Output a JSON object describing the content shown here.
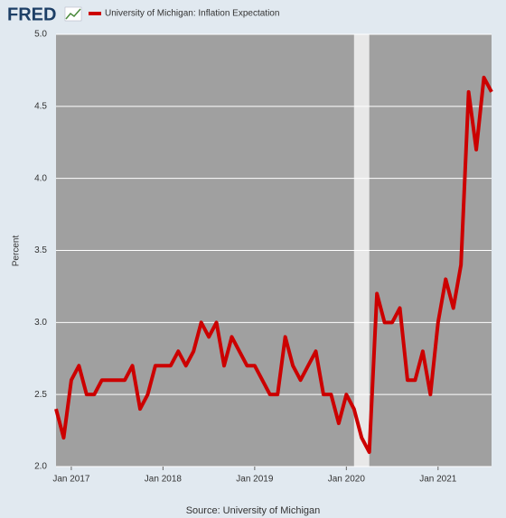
{
  "logo": "FRED",
  "chart_data": {
    "type": "line",
    "source": "Source: University of Michigan",
    "ylabel": "Percent",
    "x": [
      "2016-11",
      "2016-12",
      "2017-01",
      "2017-02",
      "2017-03",
      "2017-04",
      "2017-05",
      "2017-06",
      "2017-07",
      "2017-08",
      "2017-09",
      "2017-10",
      "2017-11",
      "2017-12",
      "2018-01",
      "2018-02",
      "2018-03",
      "2018-04",
      "2018-05",
      "2018-06",
      "2018-07",
      "2018-08",
      "2018-09",
      "2018-10",
      "2018-11",
      "2018-12",
      "2019-01",
      "2019-02",
      "2019-03",
      "2019-04",
      "2019-05",
      "2019-06",
      "2019-07",
      "2019-08",
      "2019-09",
      "2019-10",
      "2019-11",
      "2019-12",
      "2020-01",
      "2020-02",
      "2020-03",
      "2020-04",
      "2020-05",
      "2020-06",
      "2020-07",
      "2020-08",
      "2020-09",
      "2020-10",
      "2020-11",
      "2020-12",
      "2021-01",
      "2021-02",
      "2021-03",
      "2021-04",
      "2021-05",
      "2021-06",
      "2021-07",
      "2021-08"
    ],
    "series": [
      {
        "name": "University of Michigan: Inflation Expectation",
        "color": "#cc0000",
        "values": [
          2.4,
          2.2,
          2.6,
          2.7,
          2.5,
          2.5,
          2.6,
          2.6,
          2.6,
          2.6,
          2.7,
          2.4,
          2.5,
          2.7,
          2.7,
          2.7,
          2.8,
          2.7,
          2.8,
          3.0,
          2.9,
          3.0,
          2.7,
          2.9,
          2.8,
          2.7,
          2.7,
          2.6,
          2.5,
          2.5,
          2.9,
          2.7,
          2.6,
          2.7,
          2.8,
          2.5,
          2.5,
          2.3,
          2.5,
          2.4,
          2.2,
          2.1,
          3.2,
          3.0,
          3.0,
          3.1,
          2.6,
          2.6,
          2.8,
          2.5,
          3.0,
          3.3,
          3.1,
          3.4,
          4.6,
          4.2,
          4.7,
          4.6
        ]
      }
    ],
    "xlim": [
      "2016-11",
      "2021-08"
    ],
    "xticks": [
      {
        "value": "2017-01",
        "label": "Jan 2017"
      },
      {
        "value": "2018-01",
        "label": "Jan 2018"
      },
      {
        "value": "2019-01",
        "label": "Jan 2019"
      },
      {
        "value": "2020-01",
        "label": "Jan 2020"
      },
      {
        "value": "2021-01",
        "label": "Jan 2021"
      }
    ],
    "ylim": [
      2,
      5
    ],
    "yticks": [
      {
        "value": 2,
        "label": "2.0"
      },
      2.5,
      {
        "value": 3,
        "label": "3.0"
      },
      3.5,
      {
        "value": 4,
        "label": "4.0"
      },
      4.5,
      {
        "value": 5,
        "label": "5.0"
      }
    ],
    "recessions": [
      {
        "start": "2020-02",
        "end": "2020-04"
      }
    ],
    "grid": true
  }
}
